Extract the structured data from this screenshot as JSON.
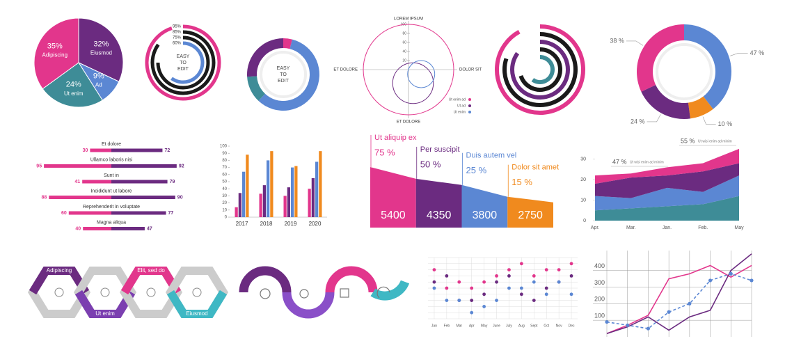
{
  "chart_data": [
    {
      "type": "pie",
      "categories": [
        "Eiusmod",
        "Ad",
        "Ut enim",
        "Adipiscing"
      ],
      "values": [
        32,
        9,
        24,
        35
      ],
      "value_labels": [
        "32%",
        "9%",
        "24%",
        "35%"
      ],
      "colors": [
        "#6b2b80",
        "#5b87d3",
        "#3e8c97",
        "#e2368c"
      ]
    },
    {
      "type": "radial_bar",
      "annotation": [
        "EASY",
        "TO",
        "EDIT"
      ],
      "values": [
        95,
        85,
        75,
        60
      ],
      "value_labels": [
        "95%",
        "85%",
        "75%",
        "60%"
      ],
      "colors": [
        "#e2368c",
        "#1a1a1a",
        "#1a1a1a",
        "#5b87d3"
      ]
    },
    {
      "type": "donut",
      "annotation": [
        "EASY",
        "TO",
        "EDIT"
      ],
      "values": [
        4,
        58,
        12,
        26
      ],
      "colors": [
        "#e2368c",
        "#5b87d3",
        "#3e8c97",
        "#6b2b80"
      ]
    },
    {
      "type": "polar_circles",
      "title": "LOREM IPSUM",
      "left_label": "ET DOLORE",
      "right_label": "DOLOR SIT",
      "bottom_label": "ET DOLORE",
      "rlim": [
        0,
        100
      ],
      "rticks": [
        20,
        40,
        60,
        80,
        100
      ],
      "series": [
        {
          "name": "Ut enim ad",
          "color": "#e2368c",
          "x": 0,
          "y": 0,
          "r": 100
        },
        {
          "name": "Ut ad",
          "color": "#6b2b80",
          "x": 10,
          "y": -30,
          "r": 45
        },
        {
          "name": "Ut enim",
          "color": "#5b87d3",
          "x": 28,
          "y": -10,
          "r": 30
        }
      ]
    },
    {
      "type": "radial_bar",
      "values": [
        92,
        80,
        85,
        70,
        60
      ],
      "colors": [
        "#e2368c",
        "#1a1a1a",
        "#6b2b80",
        "#1a1a1a",
        "#3e8c97"
      ]
    },
    {
      "type": "donut",
      "values": [
        47,
        10,
        24,
        38
      ],
      "value_labels": [
        "47 %",
        "10 %",
        "24 %",
        "38 %"
      ],
      "colors": [
        "#5b87d3",
        "#f08a1e",
        "#6b2b80",
        "#e2368c"
      ]
    },
    {
      "type": "diverging_bar",
      "categories": [
        "Et dolore",
        "Ullamco laboris nisi",
        "Sunt in",
        "Incididunt ut labore",
        "Reprehenderit in voluptate",
        "Magna aliqua"
      ],
      "series": [
        {
          "color": "#e2368c",
          "values": [
            30,
            95,
            41,
            88,
            60,
            40
          ]
        },
        {
          "color": "#6b2b80",
          "values": [
            72,
            92,
            79,
            90,
            77,
            47
          ]
        }
      ]
    },
    {
      "type": "bar",
      "categories": [
        "2017",
        "2018",
        "2019",
        "2020"
      ],
      "ylim": [
        0,
        100
      ],
      "yticks": [
        0,
        10,
        20,
        30,
        40,
        50,
        60,
        70,
        80,
        90,
        100
      ],
      "series": [
        {
          "color": "#e2368c",
          "values": [
            14,
            33,
            30,
            40
          ]
        },
        {
          "color": "#6b2b80",
          "values": [
            34,
            45,
            42,
            55
          ]
        },
        {
          "color": "#5b87d3",
          "values": [
            64,
            80,
            70,
            78
          ]
        },
        {
          "color": "#f08a1e",
          "values": [
            88,
            93,
            72,
            93
          ]
        }
      ]
    },
    {
      "type": "funnel",
      "categories": [
        "Ut aliquip ex",
        "Per suscipit",
        "Duis autem vel",
        "Dolor sit amet"
      ],
      "values": [
        5400,
        4350,
        3800,
        2750
      ],
      "percent": [
        75,
        50,
        25,
        15
      ],
      "percent_labels": [
        "75 %",
        "50 %",
        "25 %",
        "15 %"
      ],
      "colors": [
        "#e2368c",
        "#6b2b80",
        "#5b87d3",
        "#f08a1e"
      ]
    },
    {
      "type": "stacked_area",
      "categories": [
        "Apr.",
        "Mar.",
        "Jan.",
        "Feb.",
        "May"
      ],
      "ylim": [
        0,
        38
      ],
      "yticks": [
        0,
        10,
        20,
        30
      ],
      "series": [
        {
          "color": "#3e8c97",
          "values": [
            5,
            6,
            7,
            8,
            12
          ]
        },
        {
          "color": "#5b87d3",
          "values": [
            7,
            5,
            9,
            6,
            10
          ]
        },
        {
          "color": "#6b2b80",
          "values": [
            6,
            10,
            6,
            10,
            6
          ]
        },
        {
          "color": "#e2368c",
          "values": [
            4,
            2,
            4,
            4,
            7
          ]
        }
      ],
      "annotations": [
        {
          "label": "55 %",
          "text": "Ut wisi enim ad minim"
        },
        {
          "label": "47 %",
          "text": "Ut wisi enim ad minim"
        }
      ]
    },
    {
      "type": "hex_process",
      "labels": [
        "Adipiscing",
        "Ut enim",
        "Elit, sed do",
        "Eiusmod"
      ],
      "colors": [
        "#6b2b80",
        "#7b3fb0",
        "#e2368c",
        "#3fb8c4"
      ]
    },
    {
      "type": "dot",
      "categories": [
        "Jan",
        "Feb",
        "Mar",
        "Apr",
        "May",
        "June",
        "July",
        "Aug",
        "Sept",
        "Oct",
        "Nov",
        "Dec"
      ],
      "ylim": [
        0,
        10
      ],
      "series": [
        {
          "color": "#e2368c",
          "values": [
            8,
            5,
            6,
            5,
            6,
            7,
            8,
            9,
            7,
            8,
            8,
            9
          ]
        },
        {
          "color": "#6b2b80",
          "values": [
            6,
            7,
            3,
            3,
            4,
            6,
            7,
            4,
            3,
            5,
            6,
            7
          ]
        },
        {
          "color": "#5b87d3",
          "values": [
            5,
            3,
            3,
            1,
            2,
            3,
            5,
            5,
            6,
            4,
            6,
            4
          ]
        }
      ]
    },
    {
      "type": "line",
      "x": [
        0,
        1,
        2,
        3,
        4,
        5,
        6,
        7
      ],
      "xlim": [
        0,
        7
      ],
      "ylim": [
        0,
        520
      ],
      "yticks": [
        100,
        200,
        300,
        400
      ],
      "grid": true,
      "series": [
        {
          "color": "#e2368c",
          "dashed": false,
          "values": [
            20,
            70,
            130,
            350,
            380,
            430,
            360,
            430
          ]
        },
        {
          "color": "#6b2b80",
          "dashed": false,
          "values": [
            20,
            60,
            120,
            40,
            120,
            160,
            400,
            500
          ]
        },
        {
          "color": "#5b87d3",
          "dashed": true,
          "values": [
            90,
            70,
            50,
            150,
            200,
            340,
            380,
            340
          ]
        }
      ]
    }
  ]
}
